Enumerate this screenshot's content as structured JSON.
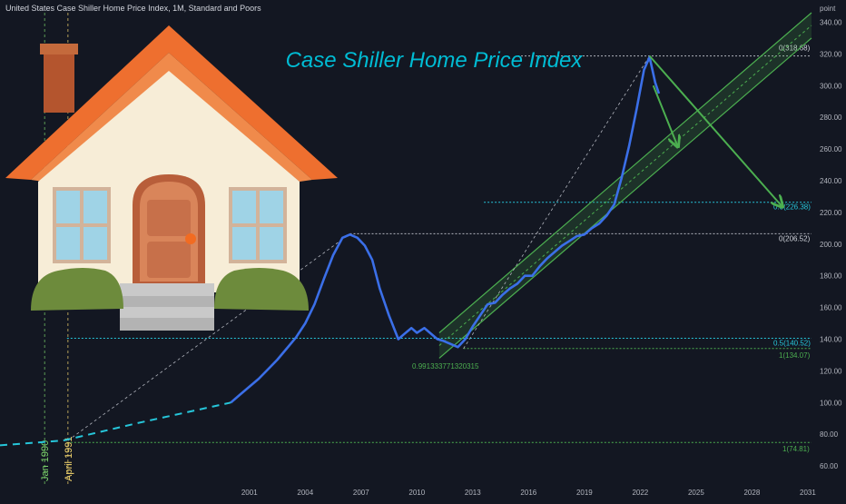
{
  "header": {
    "title": "United States Case Shiller Home Price Index, 1M, Standard and Poors"
  },
  "colors": {
    "background": "#131722",
    "price_line": "#3b6fe8",
    "channel": "#4caf50",
    "fib_cyan": "#26c6da",
    "axis_text": "#b2b5be",
    "annotation_title": "#00bcd4",
    "marker_yellow": "#f5d76e",
    "marker_green": "#7bd26a"
  },
  "icons": {
    "house": "house-icon"
  },
  "chart_data": {
    "type": "line",
    "title": "Case Shiller Home Price Index",
    "ylabel": "point",
    "xlabel": "",
    "ylim": [
      48,
      346
    ],
    "xlim": [
      1987.6,
      2031.2
    ],
    "grid": false,
    "x_ticks": [
      "2001",
      "2004",
      "2007",
      "2010",
      "2013",
      "2016",
      "2019",
      "2022",
      "2025",
      "2028",
      "2031"
    ],
    "y_ticks": [
      "60.00",
      "80.00",
      "100.00",
      "120.00",
      "140.00",
      "160.00",
      "180.00",
      "200.00",
      "220.00",
      "240.00",
      "260.00",
      "280.00",
      "300.00",
      "320.00",
      "340.00"
    ],
    "series": [
      {
        "style": "solid",
        "x": [
          2000.0,
          2000.5,
          2001.0,
          2001.5,
          2002.0,
          2002.5,
          2003.0,
          2003.5,
          2004.0,
          2004.5,
          2005.0,
          2005.5,
          2006.0,
          2006.4,
          2006.8,
          2007.2,
          2007.6,
          2008.0,
          2008.5,
          2009.0,
          2009.3,
          2009.7,
          2010.0,
          2010.4,
          2010.8,
          2011.1,
          2011.4,
          2011.8,
          2012.2,
          2012.6,
          2013.0,
          2013.4,
          2013.8,
          2014.2,
          2014.6,
          2015.0,
          2015.4,
          2015.8,
          2016.2,
          2016.6,
          2017.0,
          2017.4,
          2017.8,
          2018.2,
          2018.6,
          2019.0,
          2019.4,
          2019.8,
          2020.2,
          2020.6,
          2021.0,
          2021.4,
          2021.8,
          2022.2,
          2022.5,
          2022.8,
          2023.0
        ],
        "values": [
          100,
          105,
          110,
          115,
          121,
          127,
          134,
          141,
          150,
          162,
          178,
          193,
          204,
          206,
          204,
          199,
          190,
          172,
          155,
          140,
          143,
          147,
          144,
          147,
          143,
          140,
          139,
          137,
          135,
          140,
          148,
          155,
          162,
          163,
          168,
          172,
          175,
          180,
          180,
          186,
          191,
          195,
          199,
          202,
          205,
          206,
          210,
          213,
          218,
          225,
          242,
          262,
          285,
          310,
          318,
          302,
          295
        ]
      },
      {
        "style": "dashed",
        "x": [
          1987.6,
          1991.0,
          1995.0,
          2000.0
        ],
        "values": [
          73,
          76,
          87,
          100
        ]
      }
    ],
    "levels": [
      {
        "label": "0(318.68)",
        "value": 318.68
      },
      {
        "label": "0.5(226.38)",
        "value": 226.38
      },
      {
        "label": "0(206.52)",
        "value": 206.52
      },
      {
        "label": "0.5(140.52)",
        "value": 140.52
      },
      {
        "label": "1(134.07)",
        "value": 134.07
      },
      {
        "label": "1(74.81)",
        "value": 74.81
      }
    ],
    "channel": {
      "lower": [
        [
          2011.2,
          128
        ],
        [
          2031.2,
          330
        ]
      ],
      "upper": [
        [
          2011.2,
          144
        ],
        [
          2031.2,
          346
        ]
      ]
    },
    "annotations": {
      "fib_ratio": "0.991333771320315",
      "vertical_markers": [
        {
          "label": "Jan 1990",
          "x": 1990.0
        },
        {
          "label": "April 1991",
          "x": 1991.25
        }
      ]
    }
  }
}
